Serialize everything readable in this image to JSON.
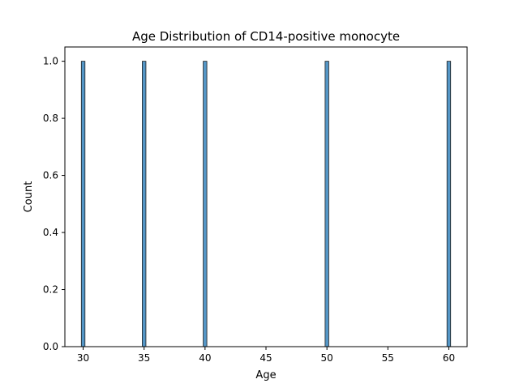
{
  "chart_data": {
    "type": "bar",
    "title": "Age Distribution of CD14-positive monocyte",
    "xlabel": "Age",
    "ylabel": "Count",
    "x_ticks": [
      30,
      35,
      40,
      45,
      50,
      55,
      60
    ],
    "y_ticks": [
      0.0,
      0.2,
      0.4,
      0.6,
      0.8,
      1.0
    ],
    "y_tick_labels": [
      "0.0",
      "0.2",
      "0.4",
      "0.6",
      "0.8",
      "1.0"
    ],
    "xlim": [
      28.5,
      61.5
    ],
    "ylim": [
      0,
      1.05
    ],
    "bin_width": 0.5,
    "bins": [
      {
        "x": 30,
        "count": 1
      },
      {
        "x": 35,
        "count": 1
      },
      {
        "x": 40,
        "count": 1
      },
      {
        "x": 50,
        "count": 1
      },
      {
        "x": 60,
        "count": 1
      }
    ],
    "bar_color": "#5496c6",
    "bar_edge_color": "#1f1f1f",
    "grid": false,
    "legend": "none"
  }
}
